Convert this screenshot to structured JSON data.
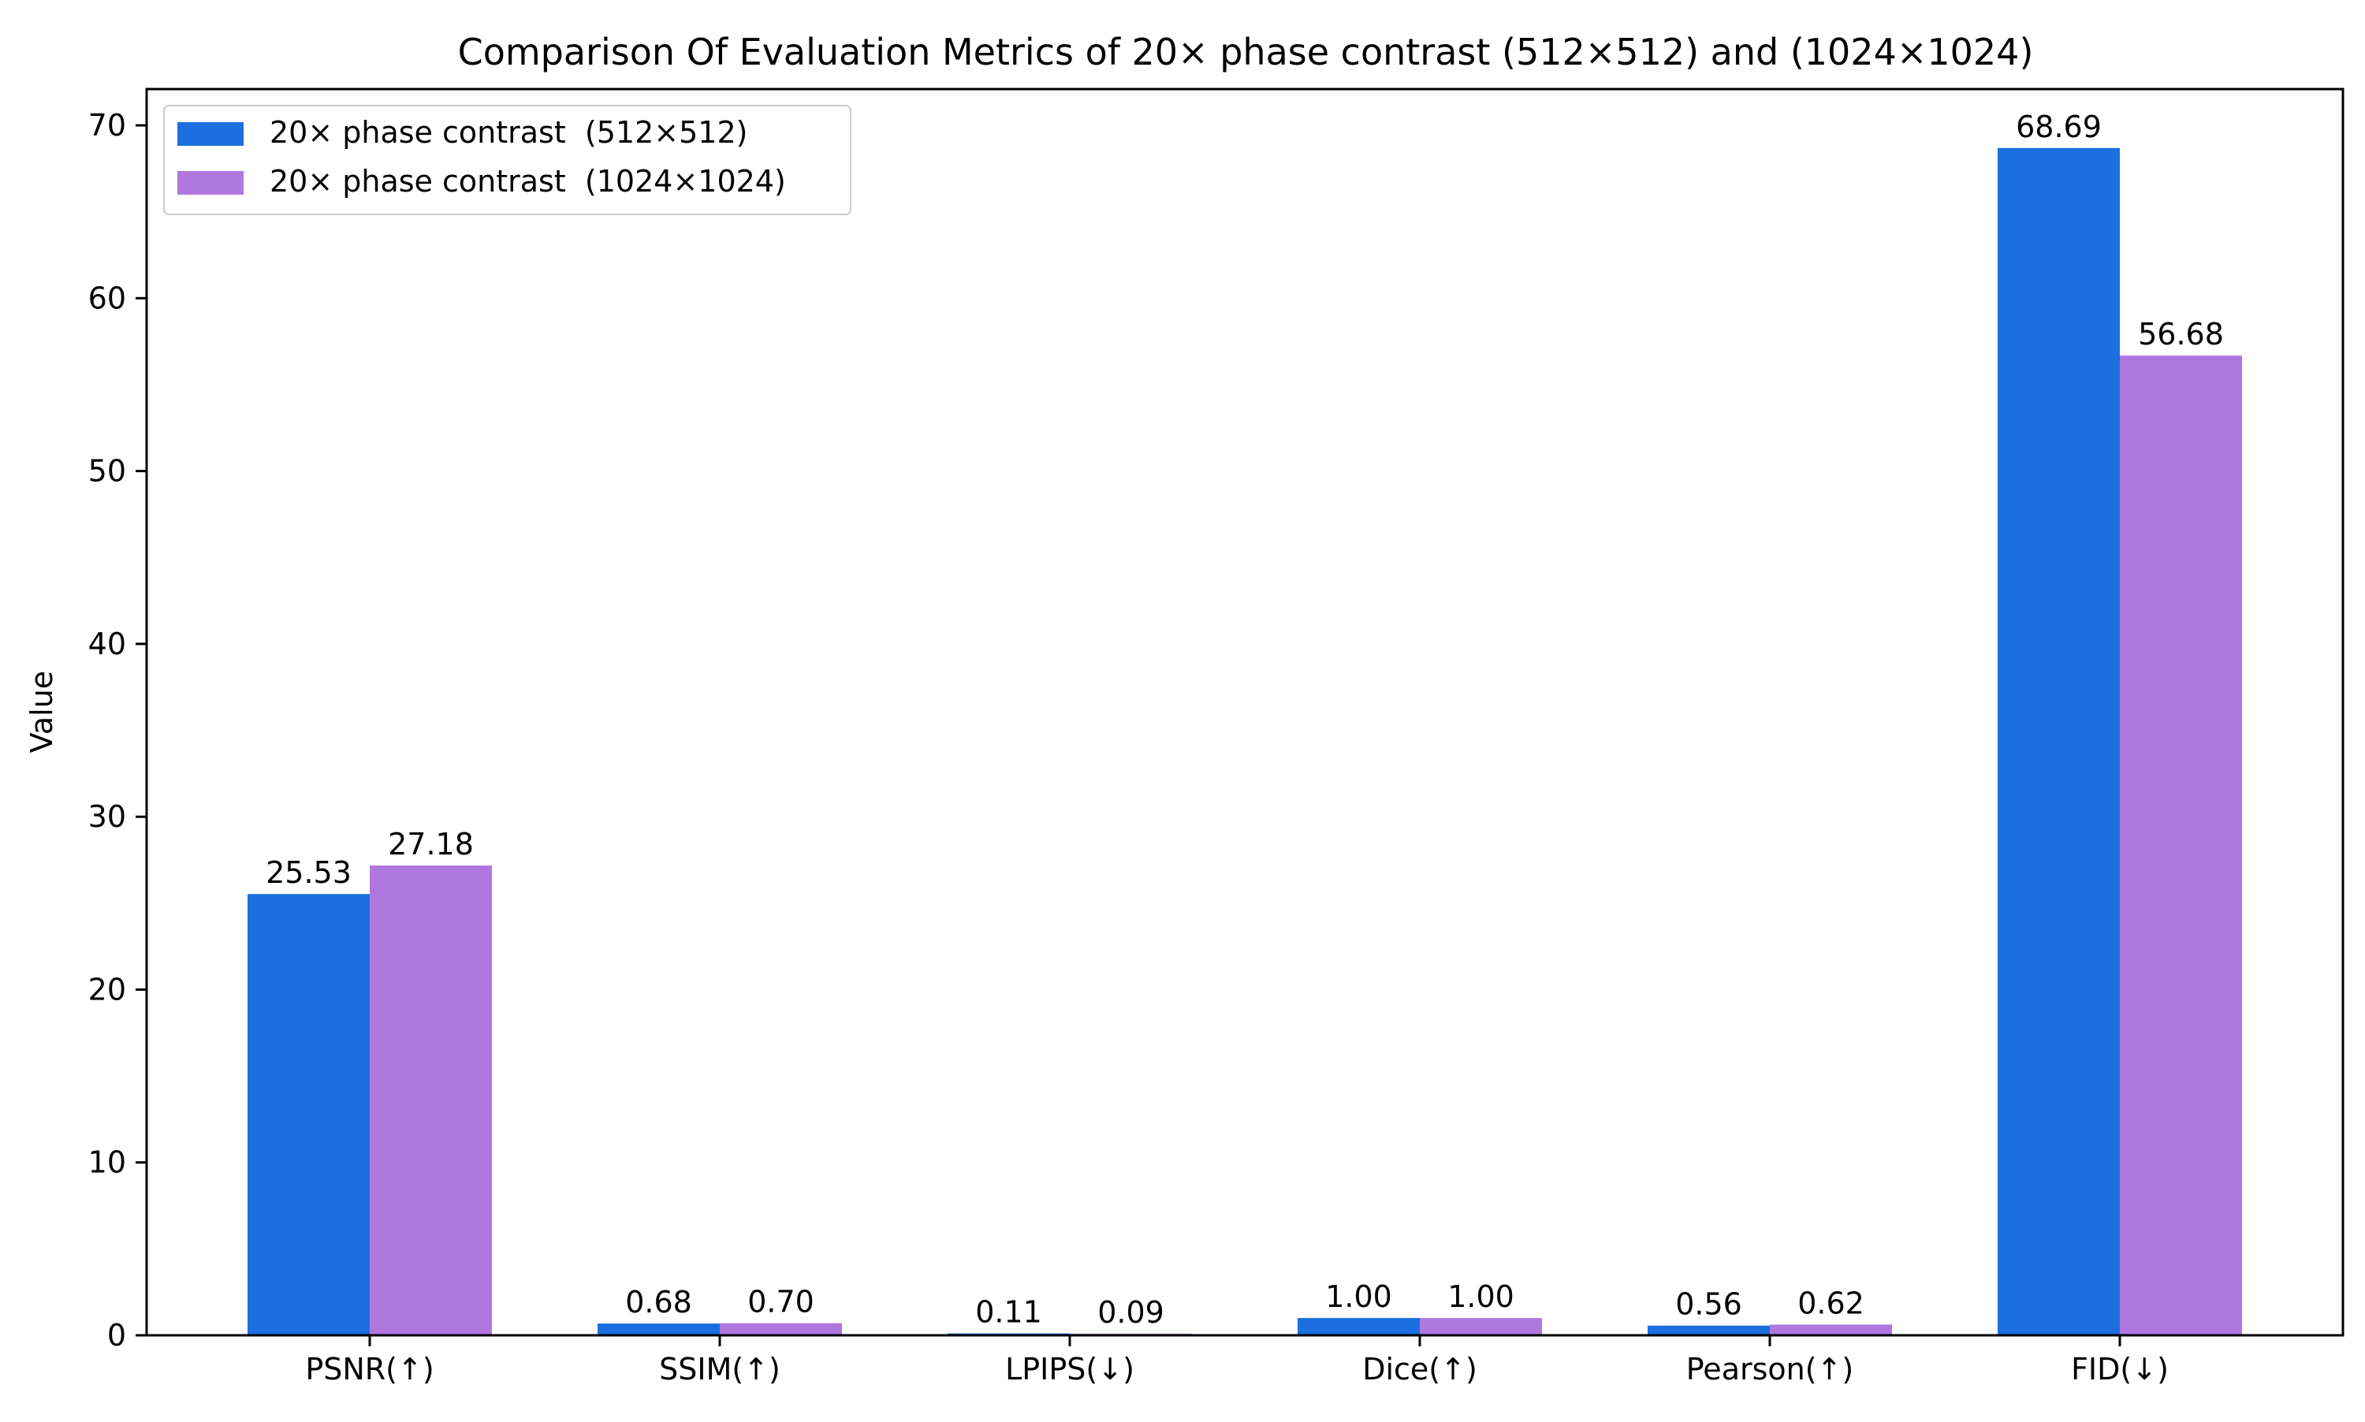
{
  "chart_data": {
    "type": "bar",
    "title": "Comparison Of Evaluation Metrics of 20× phase contrast  (512×512)  and (1024×1024)",
    "xlabel": "",
    "ylabel": "Value",
    "ylim": [
      0,
      72.1
    ],
    "yticks": [
      0,
      10,
      20,
      30,
      40,
      50,
      60,
      70
    ],
    "ytick_labels": [
      "0",
      "10",
      "20",
      "30",
      "40",
      "50",
      "60",
      "70"
    ],
    "categories": [
      "PSNR(↑)",
      "SSIM(↑)",
      "LPIPS(↓)",
      "Dice(↑)",
      "Pearson(↑)",
      "FID(↓)"
    ],
    "series": [
      {
        "name": "20× phase contrast  (512×512)",
        "color": "#1b6fde",
        "values": [
          25.53,
          0.68,
          0.11,
          1.0,
          0.56,
          68.69
        ],
        "labels": [
          "25.53",
          "0.68",
          "0.11",
          "1.00",
          "0.56",
          "68.69"
        ]
      },
      {
        "name": "20× phase contrast  (1024×1024)",
        "color": "#b077df",
        "values": [
          27.18,
          0.7,
          0.09,
          1.0,
          0.62,
          56.68
        ],
        "labels": [
          "27.18",
          "0.70",
          "0.09",
          "1.00",
          "0.62",
          "56.68"
        ]
      }
    ],
    "legend_position": "top-left",
    "grid": false
  }
}
